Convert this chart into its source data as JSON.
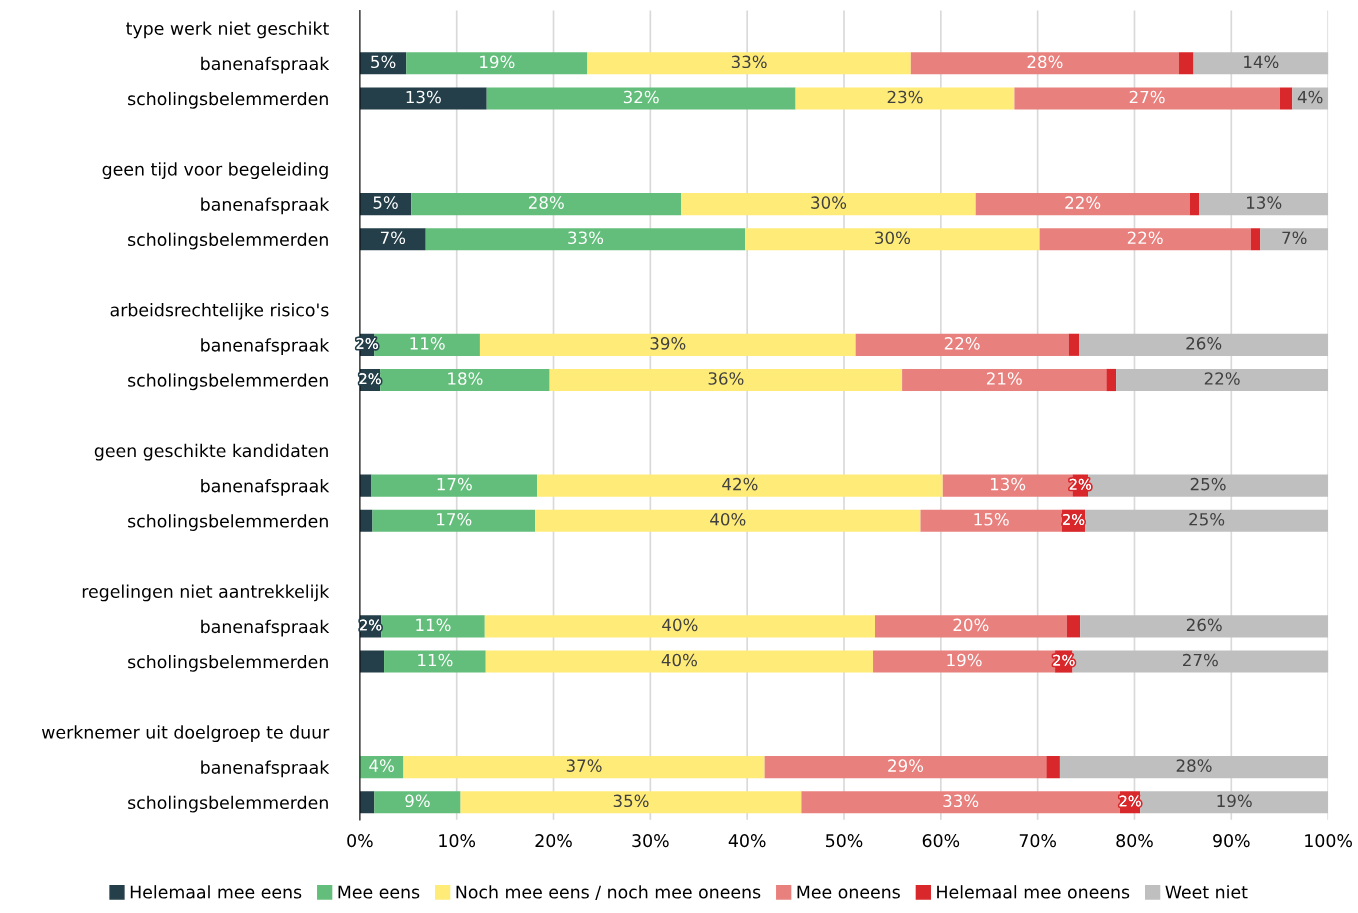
{
  "chart_data": {
    "type": "bar",
    "orientation": "horizontal",
    "stacked": true,
    "categories": [
      "type werk niet geschikt",
      "banenafspraak",
      "scholingsbelemmerden",
      null,
      "geen tijd voor begeleiding",
      "banenafspraak",
      "scholingsbelemmerden",
      null,
      "arbeidsrechtelijke risico's",
      "banenafspraak",
      "scholingsbelemmerden",
      null,
      "geen geschikte kandidaten",
      "banenafspraak",
      "scholingsbelemmerden",
      null,
      "regelingen niet aantrekkelijk",
      "banenafspraak",
      "scholingsbelemmerden",
      null,
      "werknemer uit doelgroep te duur",
      "banenafspraak",
      "scholingsbelemmerden"
    ],
    "series": [
      {
        "name": "Helemaal mee eens",
        "color": "#243f4a",
        "values": [
          null,
          4.8,
          13.1,
          null,
          null,
          5.3,
          6.8,
          null,
          null,
          1.5,
          2.1,
          null,
          null,
          1.2,
          1.3,
          null,
          null,
          2.2,
          2.5,
          null,
          null,
          null,
          1.5
        ],
        "value_labels": [
          null,
          "5%",
          "13%",
          null,
          null,
          "5%",
          "7%",
          null,
          null,
          "2%",
          "2%",
          null,
          null,
          null,
          null,
          null,
          null,
          "2%",
          null,
          null,
          null,
          null,
          null
        ]
      },
      {
        "name": "Mee eens",
        "color": "#63be7b",
        "values": [
          null,
          18.7,
          31.9,
          null,
          null,
          27.9,
          33.0,
          null,
          null,
          10.9,
          17.5,
          null,
          null,
          17.1,
          16.8,
          null,
          null,
          10.7,
          10.5,
          null,
          null,
          4.5,
          8.9
        ],
        "value_labels": [
          null,
          "19%",
          "32%",
          null,
          null,
          "28%",
          "33%",
          null,
          null,
          "11%",
          "18%",
          null,
          null,
          "17%",
          "17%",
          null,
          null,
          "11%",
          "11%",
          null,
          null,
          "4%",
          "9%"
        ]
      },
      {
        "name": "Noch mee eens / noch mee oneens",
        "color": "#ffeb78",
        "values": [
          null,
          33.4,
          22.6,
          null,
          null,
          30.4,
          30.4,
          null,
          null,
          38.8,
          36.4,
          null,
          null,
          41.9,
          39.8,
          null,
          null,
          40.3,
          40.0,
          null,
          null,
          37.3,
          35.2
        ],
        "value_labels": [
          null,
          "33%",
          "23%",
          null,
          null,
          "30%",
          "30%",
          null,
          null,
          "39%",
          "36%",
          null,
          null,
          "42%",
          "40%",
          null,
          null,
          "40%",
          "40%",
          null,
          null,
          "37%",
          "35%"
        ]
      },
      {
        "name": "Mee oneens",
        "color": "#e8817e",
        "values": [
          null,
          27.7,
          27.4,
          null,
          null,
          22.1,
          21.8,
          null,
          null,
          22.0,
          21.1,
          null,
          null,
          13.4,
          14.6,
          null,
          null,
          19.8,
          18.8,
          null,
          null,
          29.1,
          32.9
        ],
        "value_labels": [
          null,
          "28%",
          "27%",
          null,
          null,
          "22%",
          "22%",
          null,
          null,
          "22%",
          "21%",
          null,
          null,
          "13%",
          "15%",
          null,
          null,
          "20%",
          "19%",
          null,
          null,
          "29%",
          "33%"
        ]
      },
      {
        "name": "Helemaal mee oneens",
        "color": "#d9282b",
        "values": [
          null,
          1.5,
          1.3,
          null,
          null,
          1.0,
          1.0,
          null,
          null,
          1.1,
          1.0,
          null,
          null,
          1.6,
          2.4,
          null,
          null,
          1.4,
          1.8,
          null,
          null,
          1.4,
          2.1
        ],
        "value_labels": [
          null,
          null,
          null,
          null,
          null,
          null,
          null,
          null,
          null,
          null,
          null,
          null,
          null,
          "2%",
          "2%",
          null,
          null,
          null,
          "2%",
          null,
          null,
          null,
          "2%"
        ]
      },
      {
        "name": "Weet niet",
        "color": "#bfbfbf",
        "values": [
          null,
          14.0,
          3.7,
          null,
          null,
          13.3,
          7.0,
          null,
          null,
          25.7,
          21.9,
          null,
          null,
          24.8,
          25.1,
          null,
          null,
          25.6,
          26.6,
          null,
          null,
          27.7,
          19.4
        ],
        "value_labels": [
          null,
          "14%",
          "4%",
          null,
          null,
          "13%",
          "7%",
          null,
          null,
          "26%",
          "22%",
          null,
          null,
          "25%",
          "25%",
          null,
          null,
          "26%",
          "27%",
          null,
          null,
          "28%",
          "19%"
        ]
      }
    ],
    "xlim": [
      0,
      100
    ],
    "xticks": [
      {
        "value": 0,
        "label": "0%"
      },
      {
        "value": 10,
        "label": "10%"
      },
      {
        "value": 20,
        "label": "20%"
      },
      {
        "value": 30,
        "label": "30%"
      },
      {
        "value": 40,
        "label": "40%"
      },
      {
        "value": 50,
        "label": "50%"
      },
      {
        "value": 60,
        "label": "60%"
      },
      {
        "value": 70,
        "label": "70%"
      },
      {
        "value": 80,
        "label": "80%"
      },
      {
        "value": 90,
        "label": "90%"
      },
      {
        "value": 100,
        "label": "100%"
      }
    ],
    "grid": "x",
    "legend": "bottom"
  }
}
